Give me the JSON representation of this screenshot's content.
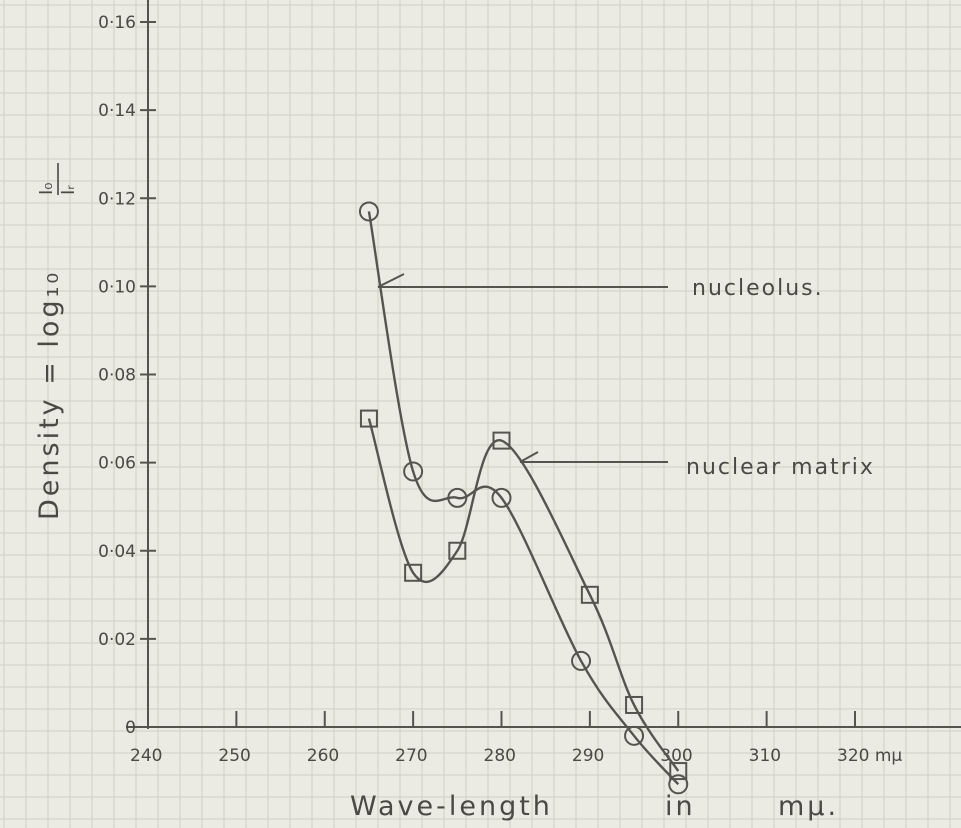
{
  "chart_data": {
    "type": "line",
    "title": "",
    "xlabel": "Wave-length",
    "xlabel_units": [
      "in",
      "mµ."
    ],
    "ylabel": "Density = log₁₀",
    "ylabel_fraction": {
      "numerator": "I₀",
      "denominator": "Iᵣ"
    },
    "x_tick_labels": [
      "240",
      "250",
      "260",
      "270",
      "280",
      "290",
      "300",
      "310",
      "320 mµ"
    ],
    "y_tick_labels": [
      "0",
      "0·02",
      "0·04",
      "0·06",
      "0·08",
      "0·10",
      "0·12",
      "0·14",
      "0·16"
    ],
    "xlim": [
      240,
      325
    ],
    "ylim": [
      0,
      0.165
    ],
    "grid": true,
    "legend": "labels drawn at right with leader lines",
    "series": [
      {
        "name": "nucleolus.",
        "marker": "circle",
        "x": [
          265,
          270,
          275,
          280,
          289,
          295,
          300
        ],
        "y": [
          0.117,
          0.058,
          0.052,
          0.052,
          0.015,
          -0.002,
          -0.013
        ]
      },
      {
        "name": "nuclear matrix",
        "marker": "square",
        "x": [
          265,
          270,
          275,
          280,
          290,
          295,
          300
        ],
        "y": [
          0.07,
          0.035,
          0.04,
          0.065,
          0.03,
          0.005,
          -0.01
        ]
      }
    ],
    "colors": {
      "paper": "#ecebe3",
      "grid": "#d0cfc5",
      "ink": "#55554f"
    }
  }
}
